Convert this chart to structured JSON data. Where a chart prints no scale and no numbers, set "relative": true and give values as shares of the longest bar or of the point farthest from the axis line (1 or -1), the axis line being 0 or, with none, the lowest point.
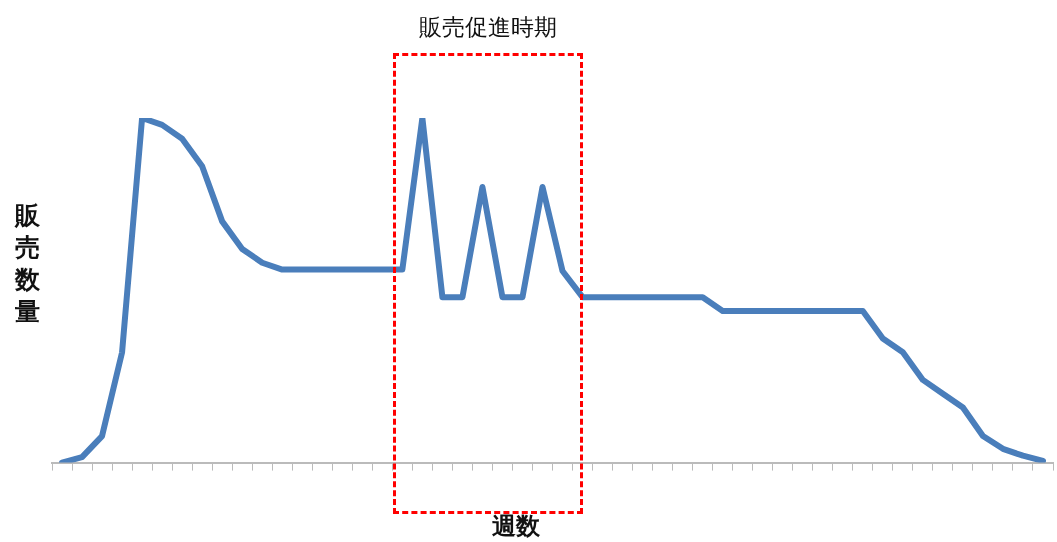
{
  "chart_data": {
    "type": "line",
    "xlabel": "週数",
    "ylabel": "販売数量",
    "annotations": [
      "販売促進時期"
    ],
    "categories": [
      null,
      null,
      null,
      null,
      null,
      null,
      null,
      null,
      null,
      null,
      null,
      null,
      null,
      null,
      null,
      null,
      null,
      null,
      null,
      null,
      null,
      null,
      null,
      null,
      null,
      null,
      null,
      null,
      null,
      null,
      null,
      null,
      null,
      null,
      null,
      null,
      null,
      null,
      null,
      null,
      null,
      null,
      null,
      null,
      null,
      null,
      null,
      null,
      null,
      null
    ],
    "relative": true,
    "marker": "none",
    "line_style": "solid",
    "legend": false,
    "grid": false,
    "series": [
      {
        "color": "#4a7ebb",
        "values": [
          0,
          0.016,
          0.077,
          0.32,
          1,
          0.98,
          0.94,
          0.86,
          0.7,
          0.62,
          0.58,
          0.56,
          0.56,
          0.56,
          0.56,
          0.56,
          0.56,
          0.56,
          1,
          0.48,
          0.48,
          0.8,
          0.48,
          0.48,
          0.8,
          0.556,
          0.48,
          0.48,
          0.48,
          0.48,
          0.48,
          0.48,
          0.48,
          0.44,
          0.44,
          0.44,
          0.44,
          0.44,
          0.44,
          0.44,
          0.44,
          0.36,
          0.32,
          0.24,
          0.2,
          0.16,
          0.077,
          0.04,
          0.02,
          0.005
        ]
      }
    ]
  }
}
